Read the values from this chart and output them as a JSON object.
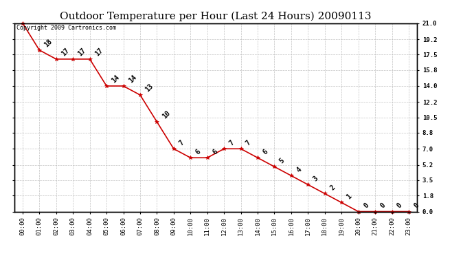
{
  "title": "Outdoor Temperature per Hour (Last 24 Hours) 20090113",
  "copyright": "Copyright 2009 Cartronics.com",
  "hours": [
    "00:00",
    "01:00",
    "02:00",
    "03:00",
    "04:00",
    "05:00",
    "06:00",
    "07:00",
    "08:00",
    "09:00",
    "10:00",
    "11:00",
    "12:00",
    "13:00",
    "14:00",
    "15:00",
    "16:00",
    "17:00",
    "18:00",
    "19:00",
    "20:00",
    "21:00",
    "22:00",
    "23:00"
  ],
  "temps": [
    21,
    18,
    17,
    17,
    17,
    14,
    14,
    13,
    10,
    7,
    6,
    6,
    7,
    7,
    6,
    5,
    4,
    3,
    2,
    1,
    0,
    0,
    0,
    0
  ],
  "line_color": "#cc0000",
  "marker": "*",
  "marker_color": "#cc0000",
  "bg_color": "#ffffff",
  "grid_color": "#bbbbbb",
  "ylim": [
    0.0,
    21.0
  ],
  "yticks": [
    0.0,
    1.8,
    3.5,
    5.2,
    7.0,
    8.8,
    10.5,
    12.2,
    14.0,
    15.8,
    17.5,
    19.2,
    21.0
  ],
  "title_fontsize": 11,
  "annot_fontsize": 7,
  "tick_fontsize": 6.5,
  "copyright_fontsize": 6
}
